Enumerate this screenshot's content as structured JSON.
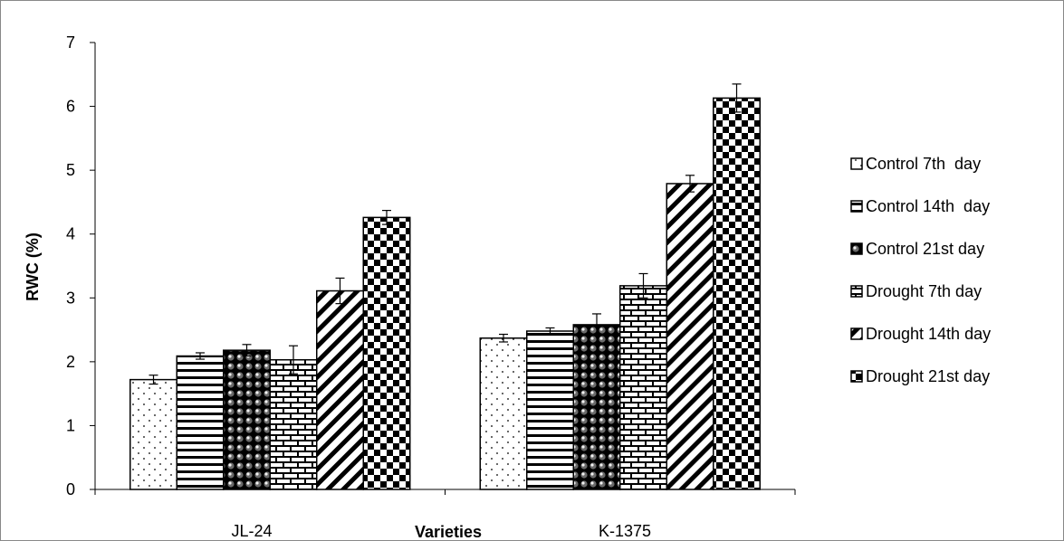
{
  "chart_data": {
    "type": "bar",
    "categories": [
      "JL-24",
      "K-1375"
    ],
    "xlabel": "Varieties",
    "ylabel": "RWC (%)",
    "ylim": [
      0,
      7
    ],
    "yticks": [
      "0",
      "1",
      "2",
      "3",
      "4",
      "5",
      "6",
      "7"
    ],
    "grid": false,
    "legend_position": "right",
    "series": [
      {
        "name": "Control 7th  day",
        "pattern": "dots",
        "values": [
          1.72,
          2.37
        ],
        "errors": [
          0.07,
          0.06
        ]
      },
      {
        "name": "Control 14th  day",
        "pattern": "horizontal-lines",
        "values": [
          2.09,
          2.48
        ],
        "errors": [
          0.05,
          0.05
        ]
      },
      {
        "name": "Control 21st day",
        "pattern": "spheres",
        "values": [
          2.18,
          2.58
        ],
        "errors": [
          0.09,
          0.17
        ]
      },
      {
        "name": "Drought 7th day",
        "pattern": "bricks",
        "values": [
          2.03,
          3.19
        ],
        "errors": [
          0.22,
          0.19
        ]
      },
      {
        "name": "Drought 14th day",
        "pattern": "diagonal-stripes",
        "values": [
          3.11,
          4.79
        ],
        "errors": [
          0.2,
          0.13
        ]
      },
      {
        "name": "Drought 21st day",
        "pattern": "checkerboard",
        "values": [
          4.26,
          6.13
        ],
        "errors": [
          0.11,
          0.22
        ]
      }
    ]
  }
}
